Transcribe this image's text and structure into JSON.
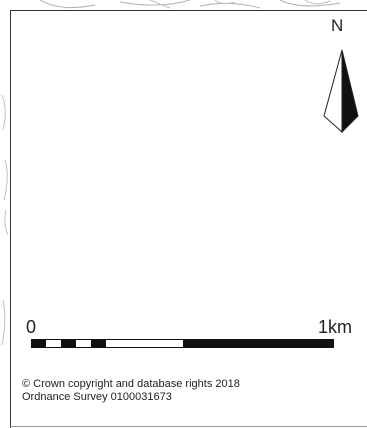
{
  "north_arrow": {
    "label": "N",
    "icon": "north-arrow-icon"
  },
  "scale_bar": {
    "start_label": "0",
    "end_label": "1km"
  },
  "copyright": {
    "line1": "© Crown copyright and database rights 2018",
    "line2": "Ordnance Survey 0100031673"
  },
  "colors": {
    "ink": "#222222",
    "panel": "#ffffff",
    "map_lines": "#9bbf9a"
  }
}
